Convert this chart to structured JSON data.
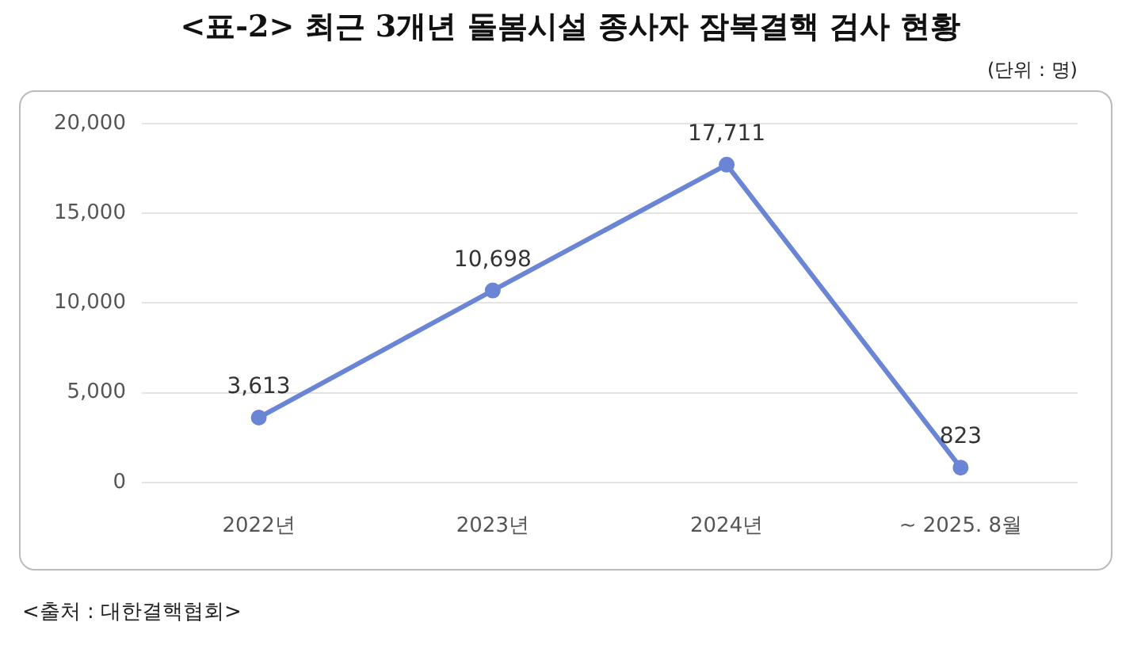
{
  "chart_data": {
    "type": "line",
    "title": "<표-2> 최근 3개년 돌봄시설 종사자 잠복결핵 검사 현황",
    "subtitle": "(단위 : 명)",
    "categories": [
      "2022년",
      "2023년",
      "2024년",
      "~ 2025. 8월"
    ],
    "series": [
      {
        "color": "#6a84d6",
        "values": [
          3613,
          10698,
          17711,
          823
        ]
      }
    ],
    "value_labels": [
      "3,613",
      "10,698",
      "17,711",
      "823"
    ],
    "ylim": [
      0,
      20000
    ],
    "yticks": [
      {
        "value": 0,
        "label": "0"
      },
      {
        "value": 5000,
        "label": "5,000"
      },
      {
        "value": 10000,
        "label": "10,000"
      },
      {
        "value": 15000,
        "label": "15,000"
      },
      {
        "value": 20000,
        "label": "20,000"
      }
    ],
    "grid": "y",
    "legend": false,
    "marker": "circle",
    "line_style": "solid",
    "annotations": [
      "<출처 : 대한결핵협회>"
    ]
  }
}
